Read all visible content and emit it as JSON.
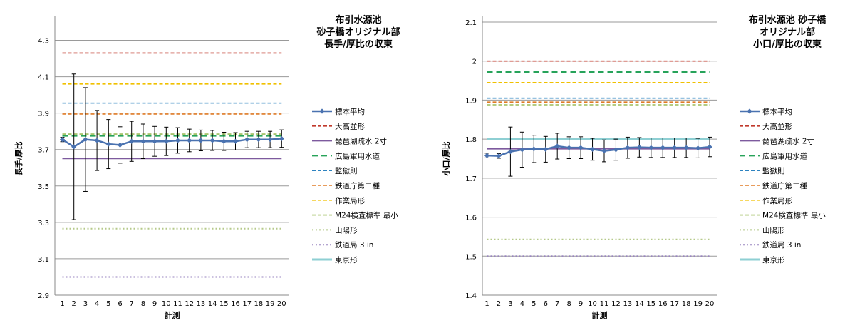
{
  "chart_data": [
    {
      "type": "line",
      "title": [
        "布引水源池",
        "砂子橋オリジナル部",
        "長手/厚比の収束"
      ],
      "xlabel": "計測",
      "ylabel": "長手/厚比",
      "x": [
        1,
        2,
        3,
        4,
        5,
        6,
        7,
        8,
        9,
        10,
        11,
        12,
        13,
        14,
        15,
        16,
        17,
        18,
        19,
        20
      ],
      "ylim": [
        2.9,
        4.4
      ],
      "yticks": [
        "2.9",
        "3.1",
        "3.3",
        "3.5",
        "3.7",
        "3.9",
        "4.1",
        "4.3"
      ],
      "grid": true,
      "legend_position": "right",
      "series": [
        {
          "name": "標本平均",
          "kind": "mean",
          "color": "#4a72b0",
          "values": [
            3.755,
            3.715,
            3.755,
            3.75,
            3.73,
            3.725,
            3.745,
            3.745,
            3.745,
            3.745,
            3.75,
            3.75,
            3.75,
            3.75,
            3.745,
            3.745,
            3.755,
            3.755,
            3.755,
            3.76
          ],
          "errors": [
            0.012,
            0.4,
            0.285,
            0.165,
            0.135,
            0.1,
            0.11,
            0.095,
            0.082,
            0.078,
            0.07,
            0.062,
            0.057,
            0.055,
            0.05,
            0.048,
            0.045,
            0.045,
            0.045,
            0.048
          ]
        },
        {
          "name": "大高並形",
          "color": "#c0392b",
          "dash": "dash",
          "value": 4.23
        },
        {
          "name": "琵琶湖疏水 2寸",
          "color": "#7d5a9e",
          "dash": "solid",
          "value": 3.65
        },
        {
          "name": "広島軍用水道",
          "color": "#27a35a",
          "dash": "longdash",
          "value": 3.775
        },
        {
          "name": "監獄則",
          "color": "#2d83c0",
          "dash": "dash",
          "value": 3.955
        },
        {
          "name": "鉄道庁第二種",
          "color": "#e07b26",
          "dash": "dash",
          "value": 3.895
        },
        {
          "name": "作業局形",
          "color": "#f0c000",
          "dash": "dash",
          "value": 4.06
        },
        {
          "name": "M24検査標準 最小",
          "color": "#9bbb59",
          "dash": "dash",
          "value": 3.785
        },
        {
          "name": "山陽形",
          "color": "#b5c98a",
          "dash": "dot",
          "value": 3.265
        },
        {
          "name": "鉄道局 3 in",
          "color": "#9a86c0",
          "dash": "dot",
          "value": 3.0
        },
        {
          "name": "東京形",
          "color": "#8ecfd3",
          "dash": "thick",
          "value": null
        }
      ]
    },
    {
      "type": "line",
      "title": [
        "布引水源池 砂子橋",
        "オリジナル部",
        "小口/厚比の収束"
      ],
      "xlabel": "計測",
      "ylabel": "小口/厚比",
      "x": [
        1,
        2,
        3,
        4,
        5,
        6,
        7,
        8,
        9,
        10,
        11,
        12,
        13,
        14,
        15,
        16,
        17,
        18,
        19,
        20
      ],
      "ylim": [
        1.4,
        2.1
      ],
      "yticks": [
        "1.4",
        "1.5",
        "1.6",
        "1.7",
        "1.8",
        "1.9",
        "2",
        "2.1"
      ],
      "grid": true,
      "legend_position": "right",
      "series": [
        {
          "name": "標本平均",
          "kind": "mean",
          "color": "#4a72b0",
          "values": [
            1.758,
            1.757,
            1.768,
            1.773,
            1.775,
            1.774,
            1.782,
            1.778,
            1.778,
            1.774,
            1.77,
            1.773,
            1.778,
            1.779,
            1.778,
            1.778,
            1.778,
            1.778,
            1.777,
            1.78
          ],
          "errors": [
            0.006,
            0.006,
            0.063,
            0.045,
            0.035,
            0.033,
            0.033,
            0.028,
            0.028,
            0.028,
            0.028,
            0.027,
            0.027,
            0.025,
            0.025,
            0.025,
            0.025,
            0.025,
            0.025,
            0.025
          ]
        },
        {
          "name": "大高並形",
          "color": "#c0392b",
          "dash": "dash",
          "value": 2.0
        },
        {
          "name": "琵琶湖疏水 2寸",
          "color": "#7d5a9e",
          "dash": "solid",
          "value": 1.775
        },
        {
          "name": "広島軍用水道",
          "color": "#27a35a",
          "dash": "longdash",
          "value": 1.972
        },
        {
          "name": "監獄則",
          "color": "#2d83c0",
          "dash": "dash",
          "value": 1.905
        },
        {
          "name": "鉄道庁第二種",
          "color": "#e07b26",
          "dash": "dash",
          "value": 1.895
        },
        {
          "name": "作業局形",
          "color": "#f0c000",
          "dash": "dash",
          "value": 1.945
        },
        {
          "name": "M24検査標準 最小",
          "color": "#9bbb59",
          "dash": "dash",
          "value": 1.888
        },
        {
          "name": "山陽形",
          "color": "#b5c98a",
          "dash": "dot",
          "value": 1.543
        },
        {
          "name": "鉄道局 3 in",
          "color": "#9a86c0",
          "dash": "dot",
          "value": 1.5
        },
        {
          "name": "東京形",
          "color": "#8ecfd3",
          "dash": "thick",
          "value": 1.8
        }
      ]
    }
  ]
}
